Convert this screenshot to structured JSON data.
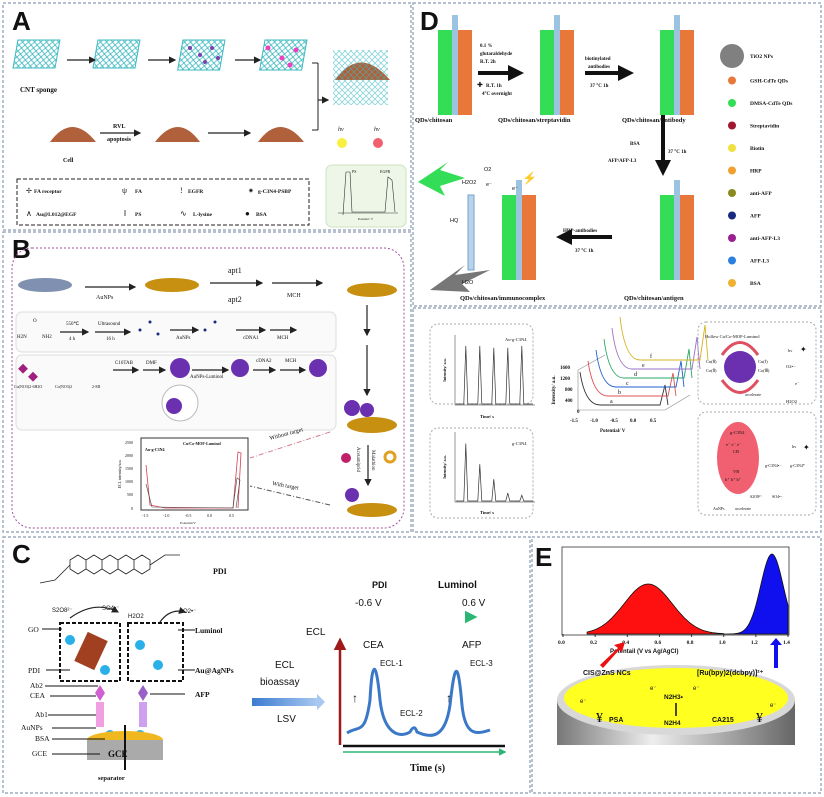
{
  "panel_labels": {
    "a": "A",
    "b": "B",
    "c": "C",
    "d": "D",
    "e": "E"
  },
  "panel_a": {
    "cnt_sponge": "CNT sponge",
    "cell": "Cell",
    "rvl": "RVL",
    "apoptosis": "apoptosis",
    "hv": "hν",
    "inset_ps": "PS",
    "inset_egfr": "EGFR",
    "inset_xlabel": "Potential / V",
    "legend": [
      "FA receptor",
      "FA",
      "EGFR",
      "g-C3N4-PSBP",
      "Au@L012@EGF",
      "PS",
      "L-lysine",
      "BSA"
    ]
  },
  "panel_b": {
    "aunps": "AuNPs",
    "apt1": "apt1",
    "apt2": "apt2",
    "mch": "MCH",
    "temp": "550℃",
    "time4": "4 h",
    "ultrasound": "Ultrasound",
    "time16": "16 h",
    "cdna1": "cDNA1",
    "cdna2": "cDNA2",
    "urea_h2n": "H2N",
    "urea_nh2": "NH2",
    "urea_o": "O",
    "cu_salt": "Cu(NO3)2·6H2O",
    "co_salt": "Co(NO3)2",
    "mi": "2-MI",
    "ctab": "C16TAB",
    "dmf": "DMF",
    "aunps_luminol": "AuNPs-Luminol",
    "without_target": "Without target",
    "with_target": "With target",
    "malathion": "Malathion",
    "acetamiprid": "Acetamiprid",
    "plot": {
      "ylabel": "ECL intensity/a.u.",
      "xlabel": "Potential/V",
      "series_left": "Au-g-C3N4",
      "series_right": "Cu/Co-MOF-Luminol",
      "yticks": [
        "0",
        "500",
        "1000",
        "1500",
        "2000",
        "2500"
      ],
      "xticks": [
        "-1.5",
        "-1.0",
        "-0.5",
        "0.0",
        "0.5"
      ]
    },
    "inset_top": {
      "label": "Au-g-C3N4",
      "ylabel": "Intensity/ a.u.",
      "xlabel": "Time/ s",
      "yticks": [
        "0",
        "500",
        "1000",
        "1500",
        "2000",
        "2500",
        "3000",
        "3500"
      ],
      "xticks": [
        "0",
        "20",
        "40",
        "60",
        "80",
        "100",
        "120",
        "140"
      ],
      "peaks": [
        2950,
        2950,
        2850,
        2850,
        2950
      ]
    },
    "inset_bottom": {
      "label": "g-C3N4",
      "ylabel": "Intensity/ a.u.",
      "xlabel": "Time/ s",
      "yticks": [
        "0",
        "500",
        "1000",
        "1500",
        "2000",
        "2500",
        "3000"
      ],
      "xticks": [
        "20",
        "40",
        "60",
        "80",
        "100",
        "120",
        "140"
      ],
      "peaks": [
        2500,
        1600,
        950,
        350,
        250
      ]
    },
    "plot3d": {
      "ylabel": "Intensity/ a.u.",
      "xlabel": "Potential/ V",
      "yticks": [
        "0",
        "400",
        "800",
        "1200",
        "1600"
      ],
      "xticks": [
        "-1.5",
        "-1.0",
        "-0.5",
        "0.0",
        "0.5"
      ],
      "curves": [
        "a",
        "b",
        "c",
        "d",
        "e",
        "f"
      ],
      "colors": [
        "#333333",
        "#e05050",
        "#1f5fd0",
        "#2aa860",
        "#9a70c8",
        "#d8b020"
      ]
    },
    "mech_top": {
      "title": "Hollow Cu/Co-MOF-Luminol",
      "cu2": "Cu(Ⅱ)",
      "cu1": "Cu(Ⅰ)",
      "co2": "Co(Ⅱ)",
      "co3": "Co(Ⅲ)",
      "o2": "O2•−",
      "h2o2": "H2O2",
      "hv": "hν",
      "accelerate": "accelerate",
      "e": "e⁻"
    },
    "mech_bottom": {
      "g": "g-C3N4",
      "cb": "CB",
      "vb": "VB",
      "e3": "e⁻ e⁻ e⁻",
      "h3": "h⁺ h⁺ h⁺",
      "rad_neg": "g-C3N4•−",
      "rad_star": "g-C3N4*",
      "s2o8": "S2O8²⁻",
      "so4": "SO4•−",
      "aunps": "AuNPs",
      "accelerate": "accelerate",
      "hv": "hν"
    }
  },
  "panel_c": {
    "pdi": "PDI",
    "s2o8": "S2O8²⁻",
    "so4": "SO4•⁻",
    "h2o2": "H2O2",
    "o2": "O2•⁻",
    "left_labels": [
      "GO",
      "PDI",
      "Ab2",
      "CEA",
      "Ab1",
      "AuNPs",
      "BSA",
      "GCE"
    ],
    "right_labels": [
      "Luminol",
      "Au@AgNPs",
      "AFP"
    ],
    "separator": "separator",
    "electrode": "GCE",
    "ecl_bioassay_1": "ECL",
    "ecl_bioassay_2": "bioassay",
    "lsv": "LSV",
    "ecl_axis": "ECL",
    "pdi_top": "PDI",
    "pdi_v": "-0.6 V",
    "luminol_top": "Luminol",
    "luminol_v": "0.6 V",
    "cea": "CEA",
    "afp": "AFP",
    "ecl1": "ECL-1",
    "ecl2": "ECL-2",
    "ecl3": "ECL-3",
    "time": "Time (s)"
  },
  "panel_d": {
    "stages": [
      "QDs/chitosan",
      "QDs/chitosan/streptavidin",
      "QDs/chitosan/antibody",
      "QDs/chitosan/antigen",
      "QDs/chitosan/immunocomplex"
    ],
    "step1": [
      "0.1 %",
      "glutaraldehyde",
      "R.T. 2h",
      "R.T. 1h",
      "4°C overnight"
    ],
    "step2": [
      "biotinylated",
      "antibodies",
      "37 °C 1h"
    ],
    "step3": [
      "BSA",
      "AFP/AFP-L3",
      "37 °C 1h"
    ],
    "step4": [
      "HRP-antibodies",
      "37 °C 1h"
    ],
    "o2": "O2",
    "h2o2": "H2O2",
    "e": "e⁻",
    "hq": "HQ",
    "h2o": "H2O",
    "legend": [
      {
        "label": "TiO2 NPs",
        "color": "#808080"
      },
      {
        "label": "GSH-CdTe QDs",
        "color": "#e8783a"
      },
      {
        "label": "DMSA-CdTe QDs",
        "color": "#33dd55"
      },
      {
        "label": "Streptavidin",
        "color": "#a01830"
      },
      {
        "label": "Biotin",
        "color": "#f0e040"
      },
      {
        "label": "HRP",
        "color": "#f0a030"
      },
      {
        "label": "anti-AFP",
        "color": "#8a8a20"
      },
      {
        "label": "AFP",
        "color": "#1a2a80"
      },
      {
        "label": "anti-AFP-L3",
        "color": "#9a2090"
      },
      {
        "label": "AFP-L3",
        "color": "#2a80e0"
      },
      {
        "label": "BSA",
        "color": "#f0b030"
      }
    ]
  },
  "panel_e": {
    "xticks": [
      "0.0",
      "0.2",
      "0.4",
      "0.6",
      "0.8",
      "1.0",
      "1.2",
      "1.4"
    ],
    "xlabel": "Potentail (V vs Ag/AgCl)",
    "peaks": [
      {
        "center": 0.53,
        "color": "#ff1010"
      },
      {
        "center": 1.3,
        "color": "#1010ee"
      }
    ],
    "cis": "CIS@ZnS NCs",
    "ru": "[Ru(bpy)2(dcbpy)]²⁺",
    "n2h3": "N2H3•",
    "n2h4": "N2H4",
    "psa": "PSA",
    "ca215": "CA215",
    "e": "e⁻"
  }
}
